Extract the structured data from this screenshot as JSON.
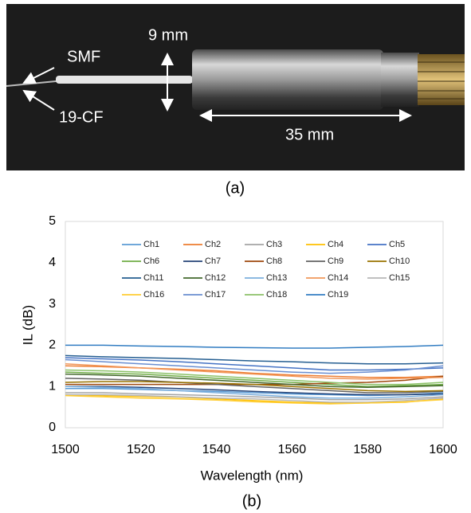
{
  "photo": {
    "labels": [
      "9 mm",
      "SMF",
      "19-CF",
      "35 mm"
    ],
    "caption": "(a)"
  },
  "chart_data": {
    "type": "line",
    "caption": "(b)",
    "x_label": "Wavelength (nm)",
    "y_label": "IL (dB)",
    "x": [
      1500,
      1510,
      1520,
      1530,
      1540,
      1550,
      1560,
      1570,
      1580,
      1590,
      1600
    ],
    "xlim": [
      1500,
      1600
    ],
    "xticks": [
      1500,
      1520,
      1540,
      1560,
      1580,
      1600
    ],
    "ylim": [
      0,
      5
    ],
    "yticks": [
      0,
      1,
      2,
      3,
      4,
      5
    ],
    "grid": false,
    "series": [
      {
        "name": "Ch1",
        "color": "#5B9BD5",
        "values": [
          0.95,
          0.95,
          0.93,
          0.9,
          0.88,
          0.85,
          0.82,
          0.8,
          0.78,
          0.8,
          0.85
        ]
      },
      {
        "name": "Ch2",
        "color": "#ED7D31",
        "values": [
          1.5,
          1.48,
          1.45,
          1.42,
          1.38,
          1.32,
          1.28,
          1.25,
          1.22,
          1.22,
          1.25
        ]
      },
      {
        "name": "Ch3",
        "color": "#A5A5A5",
        "values": [
          0.85,
          0.85,
          0.82,
          0.8,
          0.78,
          0.75,
          0.72,
          0.68,
          0.68,
          0.7,
          0.75
        ]
      },
      {
        "name": "Ch4",
        "color": "#FFC000",
        "values": [
          0.8,
          0.78,
          0.76,
          0.74,
          0.7,
          0.66,
          0.62,
          0.6,
          0.6,
          0.62,
          0.7
        ]
      },
      {
        "name": "Ch5",
        "color": "#4472C4",
        "values": [
          1.7,
          1.67,
          1.64,
          1.6,
          1.55,
          1.5,
          1.45,
          1.4,
          1.4,
          1.42,
          1.45
        ]
      },
      {
        "name": "Ch6",
        "color": "#70AD47",
        "values": [
          1.35,
          1.32,
          1.3,
          1.25,
          1.2,
          1.15,
          1.1,
          1.05,
          1.0,
          1.02,
          1.05
        ]
      },
      {
        "name": "Ch7",
        "color": "#264478",
        "values": [
          1.0,
          1.0,
          0.98,
          0.95,
          0.92,
          0.88,
          0.85,
          0.82,
          0.8,
          0.8,
          0.82
        ]
      },
      {
        "name": "Ch8",
        "color": "#9E480E",
        "values": [
          1.05,
          1.05,
          1.05,
          1.05,
          1.05,
          1.05,
          1.05,
          1.08,
          1.1,
          1.15,
          1.25
        ]
      },
      {
        "name": "Ch9",
        "color": "#636363",
        "values": [
          1.2,
          1.18,
          1.15,
          1.1,
          1.05,
          1.0,
          0.95,
          0.9,
          0.85,
          0.85,
          0.88
        ]
      },
      {
        "name": "Ch10",
        "color": "#997300",
        "values": [
          1.1,
          1.12,
          1.12,
          1.1,
          1.08,
          1.05,
          1.0,
          0.95,
          0.9,
          0.88,
          0.9
        ]
      },
      {
        "name": "Ch11",
        "color": "#255E91",
        "values": [
          1.75,
          1.72,
          1.7,
          1.68,
          1.65,
          1.62,
          1.6,
          1.57,
          1.55,
          1.55,
          1.57
        ]
      },
      {
        "name": "Ch12",
        "color": "#43682B",
        "values": [
          1.3,
          1.28,
          1.25,
          1.2,
          1.15,
          1.1,
          1.05,
          1.0,
          0.98,
          1.0,
          1.02
        ]
      },
      {
        "name": "Ch13",
        "color": "#7CAFDD",
        "values": [
          1.0,
          0.98,
          0.95,
          0.9,
          0.85,
          0.8,
          0.75,
          0.72,
          0.72,
          0.75,
          0.8
        ]
      },
      {
        "name": "Ch14",
        "color": "#F1975A",
        "values": [
          1.55,
          1.5,
          1.45,
          1.4,
          1.35,
          1.3,
          1.25,
          1.2,
          1.18,
          1.2,
          1.22
        ]
      },
      {
        "name": "Ch15",
        "color": "#B7B7B7",
        "values": [
          0.8,
          0.8,
          0.78,
          0.75,
          0.72,
          0.7,
          0.66,
          0.62,
          0.62,
          0.66,
          0.72
        ]
      },
      {
        "name": "Ch16",
        "color": "#FFCD33",
        "values": [
          0.78,
          0.75,
          0.72,
          0.7,
          0.67,
          0.63,
          0.6,
          0.58,
          0.6,
          0.63,
          0.68
        ]
      },
      {
        "name": "Ch17",
        "color": "#698ED0",
        "values": [
          1.65,
          1.6,
          1.55,
          1.5,
          1.45,
          1.4,
          1.35,
          1.32,
          1.35,
          1.4,
          1.5
        ]
      },
      {
        "name": "Ch18",
        "color": "#8CC168",
        "values": [
          1.4,
          1.38,
          1.35,
          1.3,
          1.25,
          1.2,
          1.15,
          1.1,
          1.05,
          1.05,
          1.1
        ]
      },
      {
        "name": "Ch19",
        "color": "#327DC2",
        "values": [
          2.0,
          2.0,
          1.98,
          1.97,
          1.95,
          1.94,
          1.93,
          1.93,
          1.95,
          1.97,
          2.0
        ]
      }
    ]
  }
}
